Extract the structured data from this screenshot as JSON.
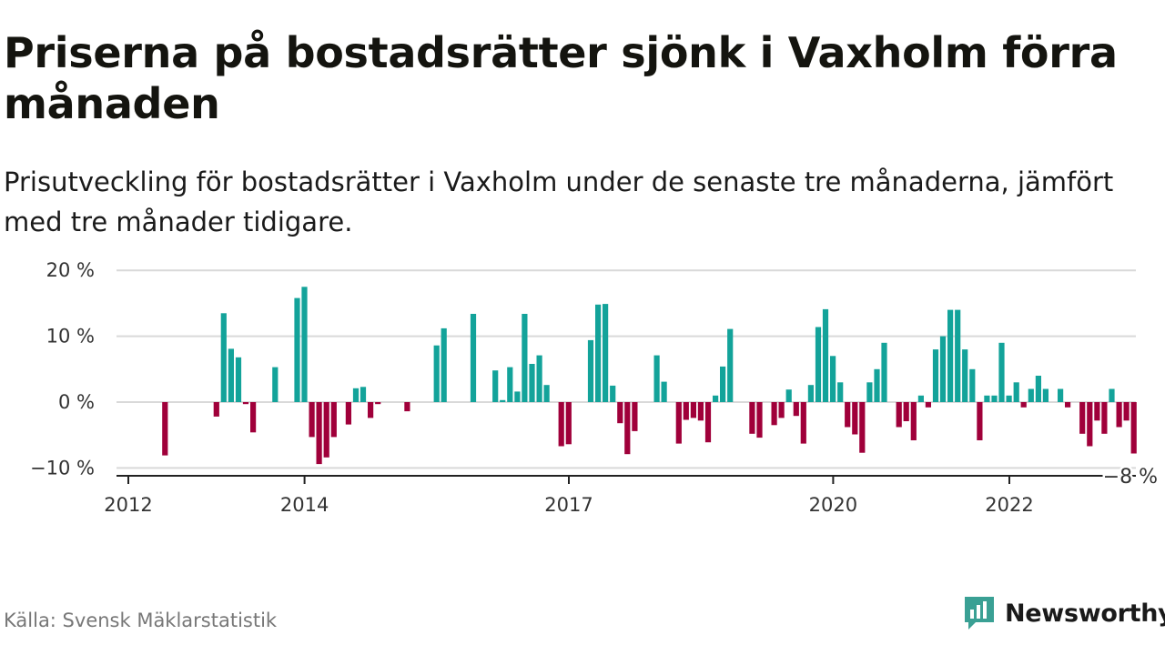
{
  "header": {
    "title": "Priserna på bostadsrätter sjönk i Vaxholm förra månaden",
    "subtitle": "Prisutveckling för bostadsrätter i Vaxholm under de senaste tre månaderna, jämfört med tre månader tidigare."
  },
  "footer": {
    "source": "Källa: Svensk Mäklarstatistik",
    "brand": "Newsworthy"
  },
  "colors": {
    "positive": "#13a39a",
    "negative": "#a0003a",
    "grid": "#d9d9d9",
    "brand": "#3aa094"
  },
  "chart_data": {
    "type": "bar",
    "ylim": [
      -10,
      20
    ],
    "yticks": [
      20,
      10,
      0,
      -10
    ],
    "ytick_labels": [
      "20 %",
      "10 %",
      "0 %",
      "−10 %"
    ],
    "xtick_labels": [
      {
        "label": "2012",
        "x": 2012.0
      },
      {
        "label": "2014",
        "x": 2014.0
      },
      {
        "label": "2017",
        "x": 2017.0
      },
      {
        "label": "2020",
        "x": 2020.0
      },
      {
        "label": "2022",
        "x": 2022.0
      }
    ],
    "x_start": 2012.0,
    "bar_step": 0.0833,
    "last_value_label": "−8 %",
    "values": [
      null,
      null,
      null,
      null,
      null,
      -8.1,
      null,
      null,
      null,
      null,
      null,
      null,
      -2.2,
      13.5,
      8.1,
      6.8,
      -0.3,
      -4.6,
      null,
      null,
      5.3,
      null,
      null,
      15.8,
      17.5,
      -5.3,
      -9.4,
      -8.4,
      -5.3,
      null,
      -3.4,
      2.1,
      2.3,
      -2.4,
      -0.3,
      null,
      null,
      null,
      -1.4,
      null,
      null,
      null,
      8.6,
      11.2,
      null,
      null,
      null,
      13.4,
      null,
      null,
      4.8,
      0.3,
      5.3,
      1.6,
      13.4,
      5.8,
      7.1,
      2.6,
      null,
      -6.7,
      -6.4,
      null,
      null,
      9.4,
      14.8,
      14.9,
      2.5,
      -3.2,
      -7.9,
      -4.4,
      null,
      null,
      7.1,
      3.1,
      null,
      -6.3,
      -2.7,
      -2.4,
      -2.8,
      -6.1,
      1.0,
      5.4,
      11.1,
      null,
      null,
      -4.8,
      -5.4,
      null,
      -3.5,
      -2.4,
      1.9,
      -2.1,
      -6.3,
      2.6,
      11.4,
      14.1,
      7.0,
      3.0,
      -3.8,
      -4.9,
      -7.7,
      3.0,
      5.0,
      9.0,
      null,
      -3.8,
      -2.9,
      -5.8,
      1.0,
      -0.8,
      8.0,
      10.0,
      14.0,
      14.0,
      8.0,
      5.0,
      -5.8,
      1.0,
      1.0,
      9.0,
      1.0,
      3.0,
      -0.8,
      2.0,
      4.0,
      2.0,
      null,
      2.0,
      -0.8,
      null,
      -4.8,
      -6.7,
      -2.8,
      -4.8,
      2.0,
      -3.8,
      -2.8,
      -7.8
    ]
  }
}
